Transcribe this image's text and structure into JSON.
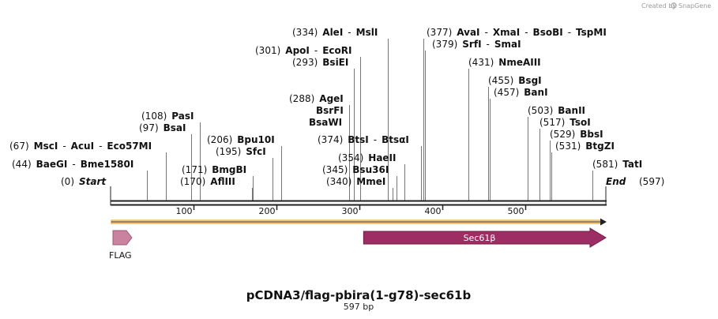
{
  "credit": {
    "text": "Created by",
    "brand": "SnapGene"
  },
  "plasmid": {
    "name": "pCDNA3/flag-pbira(1-g78)-sec61b",
    "size_label": "597 bp",
    "length": 597
  },
  "colors": {
    "backbone": "#222222",
    "orf": "#f3a62c",
    "flag": "#c9839f",
    "sec61b": "#9c2e63",
    "leader": "#777777"
  },
  "start": {
    "pos": "(0)",
    "name": "Start",
    "site": 0
  },
  "end": {
    "pos": "(597)",
    "name": "End",
    "site": 597
  },
  "ticks": [
    100,
    200,
    300,
    400,
    500
  ],
  "enzymes": [
    {
      "pos": "(44)",
      "name": "BaeGI",
      "extra": [
        {
          "sep": "-",
          "name": "Bme1580I"
        }
      ],
      "site": 44
    },
    {
      "pos": "(67)",
      "name": "MscI",
      "extra": [
        {
          "sep": "-",
          "name": "AcuI"
        },
        {
          "sep": "-",
          "name": "Eco57MI"
        }
      ],
      "site": 67
    },
    {
      "pos": "(97)",
      "name": "BsaI",
      "extra": [],
      "site": 97
    },
    {
      "pos": "(108)",
      "name": "PasI",
      "extra": [],
      "site": 108
    },
    {
      "pos": "(170)",
      "name": "AflIII",
      "extra": [],
      "site": 170
    },
    {
      "pos": "(171)",
      "name": "BmgBI",
      "extra": [],
      "site": 171
    },
    {
      "pos": "(195)",
      "name": "SfcI",
      "extra": [],
      "site": 195
    },
    {
      "pos": "(206)",
      "name": "Bpu10I",
      "extra": [],
      "site": 206
    },
    {
      "pos": "(288)",
      "name": "AgeI",
      "extra": [],
      "site": 288
    },
    {
      "pos": "",
      "name": "BsrFI",
      "extra": [],
      "site": 288
    },
    {
      "pos": "",
      "name": "BsaWI",
      "extra": [],
      "site": 288
    },
    {
      "pos": "(293)",
      "name": "BsiEI",
      "extra": [],
      "site": 293
    },
    {
      "pos": "(301)",
      "name": "ApoI",
      "extra": [
        {
          "sep": "-",
          "name": "EcoRI"
        }
      ],
      "site": 301
    },
    {
      "pos": "(334)",
      "name": "AleI",
      "extra": [
        {
          "sep": "-",
          "name": "MslI"
        }
      ],
      "site": 334
    },
    {
      "pos": "(340)",
      "name": "MmeI",
      "extra": [],
      "site": 340
    },
    {
      "pos": "(345)",
      "name": "Bsu36I",
      "extra": [],
      "site": 345
    },
    {
      "pos": "(354)",
      "name": "HaeII",
      "extra": [],
      "site": 354
    },
    {
      "pos": "(374)",
      "name": "BtsI",
      "extra": [
        {
          "sep": "-",
          "name": "BtsαI"
        }
      ],
      "site": 374
    },
    {
      "pos": "(377)",
      "name": "AvaI",
      "extra": [
        {
          "sep": "-",
          "name": "XmaI"
        },
        {
          "sep": "-",
          "name": "BsoBI"
        },
        {
          "sep": "-",
          "name": "TspMI"
        }
      ],
      "site": 377
    },
    {
      "pos": "(379)",
      "name": "SrfI",
      "extra": [
        {
          "sep": "-",
          "name": "SmaI"
        }
      ],
      "site": 379
    },
    {
      "pos": "(431)",
      "name": "NmeAIII",
      "extra": [],
      "site": 431
    },
    {
      "pos": "(455)",
      "name": "BsgI",
      "extra": [],
      "site": 455
    },
    {
      "pos": "(457)",
      "name": "BanI",
      "extra": [],
      "site": 457
    },
    {
      "pos": "(503)",
      "name": "BanII",
      "extra": [],
      "site": 503
    },
    {
      "pos": "(517)",
      "name": "TsoI",
      "extra": [],
      "site": 517
    },
    {
      "pos": "(529)",
      "name": "BbsI",
      "extra": [],
      "site": 529
    },
    {
      "pos": "(531)",
      "name": "BtgZI",
      "extra": [],
      "site": 531
    },
    {
      "pos": "(581)",
      "name": "TatI",
      "extra": [],
      "site": 581
    }
  ],
  "features": [
    {
      "name": "FLAG",
      "start": 0,
      "end": 24,
      "color_key": "flag"
    },
    {
      "name": "Sec61β",
      "start": 305,
      "end": 597,
      "color_key": "sec61b"
    }
  ],
  "orf": {
    "start": 0,
    "end": 597
  }
}
